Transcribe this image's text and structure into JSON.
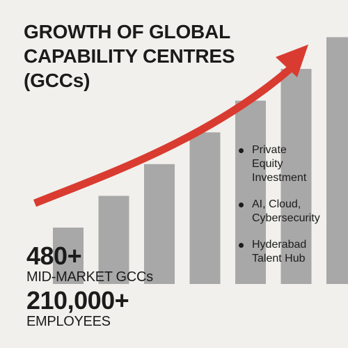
{
  "title_lines": [
    "GROWTH OF GLOBAL",
    "CAPABILITY CENTRES",
    "(GCCs)"
  ],
  "stats": [
    {
      "number": "480+",
      "label": "MID-MARKET GCCs"
    },
    {
      "number": "210,000+",
      "label": "EMPLOYEES"
    }
  ],
  "bullets": [
    {
      "lines": [
        "Private",
        "Equity",
        "Investment"
      ]
    },
    {
      "lines": [
        "AI, Cloud,",
        "Cybersecurity"
      ]
    },
    {
      "lines": [
        "Hyderabad",
        "Talent Hub"
      ]
    }
  ],
  "chart_data": {
    "type": "bar",
    "values": [
      1,
      2,
      3,
      4,
      5,
      6,
      7
    ],
    "trend": "upward arrow",
    "bar_color": "#a8a8a8",
    "arrow_color": "#d93b30"
  },
  "colors": {
    "background": "#f1f0ed",
    "text": "#1b1b1b",
    "bar": "#a8a8a8",
    "arrow": "#d93b30"
  }
}
